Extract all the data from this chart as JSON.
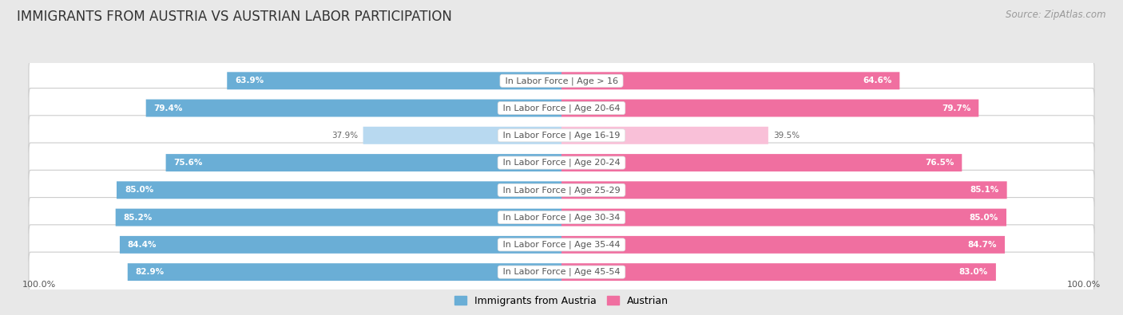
{
  "title": "IMMIGRANTS FROM AUSTRIA VS AUSTRIAN LABOR PARTICIPATION",
  "source": "Source: ZipAtlas.com",
  "categories": [
    "In Labor Force | Age > 16",
    "In Labor Force | Age 20-64",
    "In Labor Force | Age 16-19",
    "In Labor Force | Age 20-24",
    "In Labor Force | Age 25-29",
    "In Labor Force | Age 30-34",
    "In Labor Force | Age 35-44",
    "In Labor Force | Age 45-54"
  ],
  "left_values": [
    63.9,
    79.4,
    37.9,
    75.6,
    85.0,
    85.2,
    84.4,
    82.9
  ],
  "right_values": [
    64.6,
    79.7,
    39.5,
    76.5,
    85.1,
    85.0,
    84.7,
    83.0
  ],
  "left_color": "#6AAED6",
  "right_color": "#F06FA0",
  "left_color_light": "#B8D9F0",
  "right_color_light": "#F9C0D8",
  "left_label": "Immigrants from Austria",
  "right_label": "Austrian",
  "axis_max": 100.0,
  "bg_color": "#E8E8E8",
  "row_bg_color": "#FFFFFF",
  "row_border_color": "#CCCCCC",
  "title_fontsize": 12,
  "source_fontsize": 8.5,
  "cat_fontsize": 8,
  "value_fontsize": 7.5,
  "legend_fontsize": 9,
  "axis_label_fontsize": 8,
  "title_color": "#333333",
  "source_color": "#999999",
  "cat_label_color": "#555555",
  "value_color_inside": "#FFFFFF",
  "value_color_outside": "#666666",
  "low_threshold": 50
}
